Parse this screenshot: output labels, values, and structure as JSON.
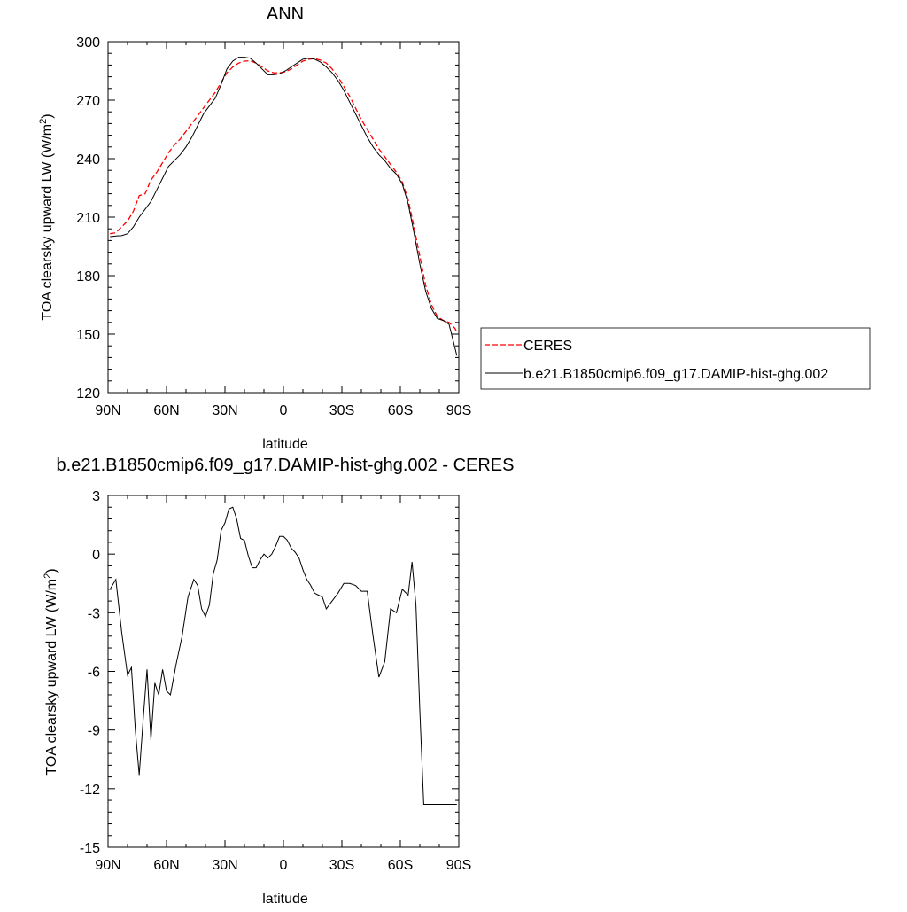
{
  "chart_data": [
    {
      "type": "line",
      "title": "ANN",
      "xlabel": "latitude",
      "ylabel": "TOA clearsky upward LW (W/m",
      "ylabel_sup": "2",
      "ylabel_tail": ")",
      "xlim": [
        90,
        -90
      ],
      "ylim": [
        120,
        300
      ],
      "xticks": [
        90,
        60,
        30,
        0,
        -30,
        -60,
        -90
      ],
      "xtick_labels": [
        "90N",
        "60N",
        "30N",
        "0",
        "30S",
        "60S",
        "90S"
      ],
      "yticks": [
        120,
        150,
        180,
        210,
        240,
        270,
        300
      ],
      "ytick_labels": [
        "120",
        "150",
        "180",
        "210",
        "240",
        "270",
        "300"
      ],
      "legend_position": "right-outside",
      "series": [
        {
          "name": "CERES",
          "color": "#ff0000",
          "dash": true,
          "x": [
            89,
            86,
            83,
            80,
            77,
            74,
            71,
            68,
            65,
            62,
            59,
            56,
            53,
            50,
            47,
            44,
            41,
            38,
            35,
            32,
            29,
            26,
            23,
            20,
            17,
            14,
            11,
            8,
            5,
            2,
            -1,
            -4,
            -7,
            -10,
            -13,
            -16,
            -19,
            -22,
            -25,
            -28,
            -31,
            -34,
            -37,
            -40,
            -43,
            -46,
            -49,
            -52,
            -55,
            -58,
            -61,
            -64,
            -67,
            -70,
            -73,
            -76,
            -79,
            -82,
            -85,
            -88,
            -89
          ],
          "values": [
            201.5,
            202,
            205,
            208,
            213,
            221,
            222,
            229,
            233,
            238,
            243,
            247,
            250,
            254,
            258,
            262,
            266,
            270,
            274,
            279,
            284,
            287,
            289,
            290,
            290.2,
            289,
            287,
            285,
            284,
            284,
            284.5,
            286,
            288,
            290,
            291,
            291.3,
            290.5,
            289,
            286,
            282,
            277,
            272,
            266,
            260,
            255,
            250,
            245,
            241,
            237,
            233,
            228,
            219,
            205,
            190,
            175,
            165,
            159,
            157,
            156,
            153,
            151
          ]
        },
        {
          "name": "b.e21.B1850cmip6.f09_g17.DAMIP-hist-ghg.002",
          "color": "#000000",
          "dash": false,
          "x": [
            89,
            86,
            83,
            80,
            77,
            74,
            71,
            68,
            65,
            62,
            59,
            56,
            53,
            50,
            47,
            44,
            41,
            38,
            35,
            32,
            29,
            26,
            23,
            20,
            17,
            14,
            11,
            8,
            5,
            2,
            -1,
            -4,
            -7,
            -10,
            -13,
            -16,
            -19,
            -22,
            -25,
            -28,
            -31,
            -34,
            -37,
            -40,
            -43,
            -46,
            -49,
            -52,
            -55,
            -58,
            -61,
            -64,
            -67,
            -70,
            -73,
            -76,
            -79,
            -82,
            -85,
            -88,
            -89
          ],
          "values": [
            200,
            200.3,
            200.5,
            201.5,
            205,
            210,
            214,
            218,
            224,
            230,
            236,
            239,
            242,
            246,
            251,
            257,
            263,
            267,
            271,
            278,
            286,
            290,
            292,
            292,
            291.5,
            289,
            286,
            283,
            283,
            283.5,
            285,
            287,
            289,
            291,
            291.5,
            291,
            289.5,
            287,
            284,
            280,
            275,
            269,
            263,
            257,
            251,
            246,
            242,
            239,
            235,
            232,
            227,
            217,
            202,
            186,
            172,
            163,
            158,
            157,
            155,
            143,
            139
          ]
        }
      ]
    },
    {
      "type": "line",
      "title": "b.e21.B1850cmip6.f09_g17.DAMIP-hist-ghg.002 - CERES",
      "xlabel": "latitude",
      "ylabel": "TOA clearsky upward LW (W/m",
      "ylabel_sup": "2",
      "ylabel_tail": ")",
      "xlim": [
        90,
        -90
      ],
      "ylim": [
        -15,
        3
      ],
      "xticks": [
        90,
        60,
        30,
        0,
        -30,
        -60,
        -90
      ],
      "xtick_labels": [
        "90N",
        "60N",
        "30N",
        "0",
        "30S",
        "60S",
        "90S"
      ],
      "yticks": [
        -15,
        -12,
        -9,
        -6,
        -3,
        0,
        3
      ],
      "ytick_labels": [
        "-15",
        "-12",
        "-9",
        "-6",
        "-3",
        "0",
        "3"
      ],
      "series": [
        {
          "name": "",
          "color": "#000000",
          "dash": false,
          "x": [
            89,
            86,
            83,
            80,
            78,
            76,
            74,
            72,
            70,
            68,
            66,
            64,
            62,
            60,
            58,
            55,
            52,
            49,
            46,
            44,
            42,
            40,
            38,
            36,
            34,
            32,
            30,
            28,
            26,
            24,
            22,
            20,
            18,
            16,
            14,
            12,
            10,
            8,
            6,
            4,
            2,
            0,
            -2,
            -4,
            -6,
            -8,
            -10,
            -12,
            -14,
            -16,
            -18,
            -20,
            -22,
            -25,
            -28,
            -31,
            -34,
            -37,
            -40,
            -43,
            -46,
            -49,
            -52,
            -55,
            -58,
            -61,
            -64,
            -66,
            -68,
            -70,
            -72,
            -74,
            -76,
            -78,
            -80,
            -82,
            -84,
            -86,
            -88,
            -89
          ],
          "values": [
            -1.8,
            -1.3,
            -4,
            -6.2,
            -5.8,
            -9,
            -11.3,
            -8.5,
            -5.9,
            -9.5,
            -6.6,
            -7.2,
            -5.9,
            -7,
            -7.2,
            -5.6,
            -4.2,
            -2.2,
            -1.3,
            -1.6,
            -2.8,
            -3.2,
            -2.6,
            -1,
            -0.3,
            1.2,
            1.6,
            2.3,
            2.4,
            1.8,
            0.8,
            0.7,
            -0.1,
            -0.7,
            -0.7,
            -0.3,
            0,
            -0.2,
            0,
            0.4,
            0.9,
            0.9,
            0.7,
            0.3,
            0.1,
            -0.2,
            -0.8,
            -1.3,
            -1.6,
            -2,
            -2.1,
            -2.2,
            -2.8,
            -2.4,
            -2,
            -1.5,
            -1.5,
            -1.6,
            -1.9,
            -1.9,
            -4.2,
            -6.3,
            -5.5,
            -2.8,
            -3,
            -1.8,
            -2.1,
            -0.4,
            -2.6,
            -8,
            -12.8,
            -12.8,
            -12.8,
            -12.8,
            -12.8,
            -12.8,
            -12.8,
            -12.8,
            -12.8,
            -12.8
          ]
        }
      ]
    }
  ]
}
